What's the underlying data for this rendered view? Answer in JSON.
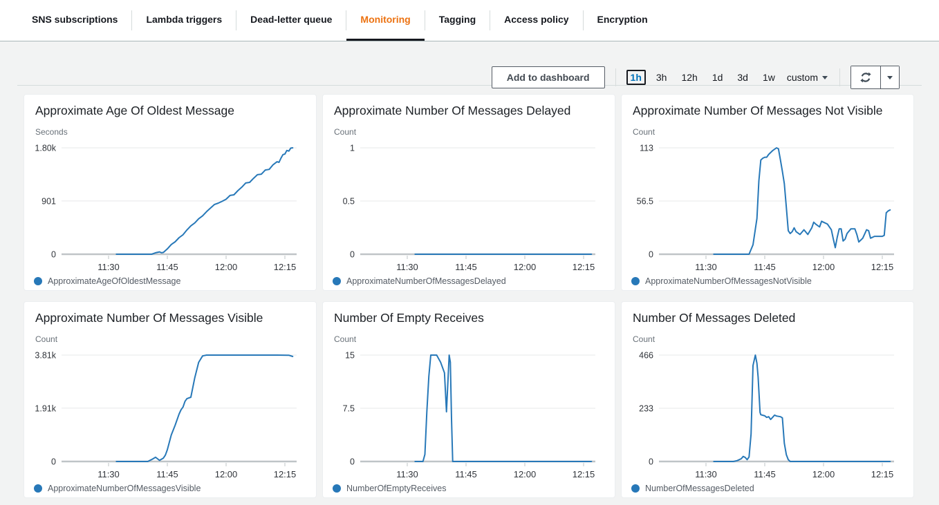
{
  "tab_bar": {
    "items": [
      {
        "label": "SNS subscriptions",
        "active": false
      },
      {
        "label": "Lambda triggers",
        "active": false
      },
      {
        "label": "Dead-letter queue",
        "active": false
      },
      {
        "label": "Monitoring",
        "active": true
      },
      {
        "label": "Tagging",
        "active": false
      },
      {
        "label": "Access policy",
        "active": false
      },
      {
        "label": "Encryption",
        "active": false
      }
    ]
  },
  "toolbar": {
    "add_to_dashboard_label": "Add to dashboard",
    "time_ranges": [
      {
        "label": "1h",
        "selected": true
      },
      {
        "label": "3h",
        "selected": false
      },
      {
        "label": "12h",
        "selected": false
      },
      {
        "label": "1d",
        "selected": false
      },
      {
        "label": "3d",
        "selected": false
      },
      {
        "label": "1w",
        "selected": false
      }
    ],
    "custom_label": "custom",
    "icons": {
      "refresh": "refresh-icon",
      "caret": "caret-down-icon"
    }
  },
  "colors": {
    "active_tab_orange": "#ec7211",
    "selected_range_blue": "#0073bb",
    "line_blue": "#2778b8",
    "gridline": "#e7e8ea",
    "axis_line": "#bfc4c7",
    "tick_text": "#30343a",
    "unit_text": "#687078",
    "legend_text": "#545b64",
    "page_background": "#f2f3f3",
    "card_background": "#ffffff"
  },
  "chart_data": [
    {
      "type": "line",
      "title": "Approximate Age Of Oldest Message",
      "ylabel": "Seconds",
      "ylim": [
        0,
        1800
      ],
      "x_domain_minutes": [
        0,
        60
      ],
      "grid": true,
      "legend_position": "bottom-left",
      "y_ticks": [
        {
          "value": 1800,
          "label": "1.80k"
        },
        {
          "value": 901,
          "label": "901"
        },
        {
          "value": 0,
          "label": "0"
        }
      ],
      "x_ticks": [
        {
          "minute": 12,
          "label": "11:30"
        },
        {
          "minute": 27,
          "label": "11:45"
        },
        {
          "minute": 42,
          "label": "12:00"
        },
        {
          "minute": 57,
          "label": "12:15"
        }
      ],
      "series": [
        {
          "name": "ApproximateAgeOfOldestMessage",
          "points": [
            [
              14,
              0
            ],
            [
              23,
              0
            ],
            [
              24,
              25
            ],
            [
              25,
              40
            ],
            [
              25.5,
              25
            ],
            [
              26,
              30
            ],
            [
              27,
              90
            ],
            [
              28,
              165
            ],
            [
              29,
              210
            ],
            [
              30,
              280
            ],
            [
              31,
              330
            ],
            [
              32,
              410
            ],
            [
              33,
              480
            ],
            [
              34,
              530
            ],
            [
              35,
              600
            ],
            [
              36,
              650
            ],
            [
              37,
              720
            ],
            [
              38,
              780
            ],
            [
              39,
              840
            ],
            [
              40,
              865
            ],
            [
              41,
              895
            ],
            [
              42,
              930
            ],
            [
              43,
              995
            ],
            [
              44,
              1005
            ],
            [
              45,
              1075
            ],
            [
              46,
              1135
            ],
            [
              47,
              1205
            ],
            [
              48,
              1215
            ],
            [
              49,
              1285
            ],
            [
              50,
              1345
            ],
            [
              51,
              1355
            ],
            [
              52,
              1425
            ],
            [
              53,
              1435
            ],
            [
              54,
              1515
            ],
            [
              55,
              1565
            ],
            [
              55.5,
              1555
            ],
            [
              56,
              1625
            ],
            [
              56.5,
              1685
            ],
            [
              57,
              1695
            ],
            [
              57.5,
              1755
            ],
            [
              58,
              1745
            ],
            [
              58.5,
              1795
            ],
            [
              59,
              1800
            ]
          ]
        }
      ]
    },
    {
      "type": "line",
      "title": "Approximate Number Of Messages Delayed",
      "ylabel": "Count",
      "ylim": [
        0,
        1
      ],
      "x_domain_minutes": [
        0,
        60
      ],
      "grid": true,
      "legend_position": "bottom-left",
      "y_ticks": [
        {
          "value": 1,
          "label": "1"
        },
        {
          "value": 0.5,
          "label": "0.5"
        },
        {
          "value": 0,
          "label": "0"
        }
      ],
      "x_ticks": [
        {
          "minute": 12,
          "label": "11:30"
        },
        {
          "minute": 27,
          "label": "11:45"
        },
        {
          "minute": 42,
          "label": "12:00"
        },
        {
          "minute": 57,
          "label": "12:15"
        }
      ],
      "series": [
        {
          "name": "ApproximateNumberOfMessagesDelayed",
          "points": [
            [
              14,
              0
            ],
            [
              59,
              0
            ]
          ]
        }
      ]
    },
    {
      "type": "line",
      "title": "Approximate Number Of Messages Not Visible",
      "ylabel": "Count",
      "ylim": [
        0,
        113
      ],
      "x_domain_minutes": [
        0,
        60
      ],
      "grid": true,
      "legend_position": "bottom-left",
      "y_ticks": [
        {
          "value": 113,
          "label": "113"
        },
        {
          "value": 56.5,
          "label": "56.5"
        },
        {
          "value": 0,
          "label": "0"
        }
      ],
      "x_ticks": [
        {
          "minute": 12,
          "label": "11:30"
        },
        {
          "minute": 27,
          "label": "11:45"
        },
        {
          "minute": 42,
          "label": "12:00"
        },
        {
          "minute": 57,
          "label": "12:15"
        }
      ],
      "series": [
        {
          "name": "ApproximateNumberOfMessagesNotVisible",
          "points": [
            [
              14,
              0
            ],
            [
              23,
              0
            ],
            [
              24,
              10
            ],
            [
              25,
              38
            ],
            [
              25.5,
              78
            ],
            [
              26,
              100
            ],
            [
              26.5,
              102
            ],
            [
              27,
              103
            ],
            [
              27.5,
              103
            ],
            [
              28,
              106
            ],
            [
              29,
              110
            ],
            [
              30,
              113
            ],
            [
              30.5,
              112
            ],
            [
              31,
              100
            ],
            [
              31.5,
              88
            ],
            [
              32,
              75
            ],
            [
              32.5,
              50
            ],
            [
              33,
              25
            ],
            [
              33.5,
              22
            ],
            [
              34,
              24
            ],
            [
              34.5,
              28
            ],
            [
              35,
              24
            ],
            [
              36,
              21
            ],
            [
              37,
              26
            ],
            [
              38,
              21
            ],
            [
              39,
              28
            ],
            [
              39.5,
              34
            ],
            [
              40,
              32
            ],
            [
              41,
              29
            ],
            [
              41.5,
              35
            ],
            [
              42,
              34
            ],
            [
              43,
              32
            ],
            [
              44,
              26
            ],
            [
              44.5,
              16
            ],
            [
              45,
              7
            ],
            [
              45.5,
              18
            ],
            [
              46,
              27
            ],
            [
              46.5,
              27
            ],
            [
              47,
              14
            ],
            [
              47.5,
              16
            ],
            [
              48,
              22
            ],
            [
              49,
              27
            ],
            [
              50,
              27
            ],
            [
              50.5,
              21
            ],
            [
              51,
              13
            ],
            [
              51.5,
              15
            ],
            [
              52,
              17
            ],
            [
              53,
              26
            ],
            [
              53.5,
              25
            ],
            [
              54,
              17
            ],
            [
              55,
              19
            ],
            [
              56,
              19
            ],
            [
              57,
              19
            ],
            [
              57.5,
              20
            ],
            [
              58,
              44
            ],
            [
              58.5,
              46
            ],
            [
              59,
              47
            ]
          ]
        }
      ]
    },
    {
      "type": "line",
      "title": "Approximate Number Of Messages Visible",
      "ylabel": "Count",
      "ylim": [
        0,
        3810
      ],
      "x_domain_minutes": [
        0,
        60
      ],
      "grid": true,
      "legend_position": "bottom-left",
      "y_ticks": [
        {
          "value": 3810,
          "label": "3.81k"
        },
        {
          "value": 1910,
          "label": "1.91k"
        },
        {
          "value": 0,
          "label": "0"
        }
      ],
      "x_ticks": [
        {
          "minute": 12,
          "label": "11:30"
        },
        {
          "minute": 27,
          "label": "11:45"
        },
        {
          "minute": 42,
          "label": "12:00"
        },
        {
          "minute": 57,
          "label": "12:15"
        }
      ],
      "series": [
        {
          "name": "ApproximateNumberOfMessagesVisible",
          "points": [
            [
              14,
              0
            ],
            [
              22,
              0
            ],
            [
              23,
              70
            ],
            [
              24,
              150
            ],
            [
              25,
              40
            ],
            [
              26,
              120
            ],
            [
              26.5,
              230
            ],
            [
              27,
              420
            ],
            [
              28,
              950
            ],
            [
              29,
              1300
            ],
            [
              30,
              1700
            ],
            [
              30.5,
              1850
            ],
            [
              31,
              1950
            ],
            [
              31.5,
              2150
            ],
            [
              32,
              2250
            ],
            [
              33,
              2300
            ],
            [
              34,
              3000
            ],
            [
              35,
              3550
            ],
            [
              36,
              3780
            ],
            [
              37,
              3810
            ],
            [
              40,
              3810
            ],
            [
              45,
              3810
            ],
            [
              50,
              3810
            ],
            [
              55,
              3810
            ],
            [
              58,
              3805
            ],
            [
              59,
              3760
            ]
          ]
        }
      ]
    },
    {
      "type": "line",
      "title": "Number Of Empty Receives",
      "ylabel": "Count",
      "ylim": [
        0,
        15
      ],
      "x_domain_minutes": [
        0,
        60
      ],
      "grid": true,
      "legend_position": "bottom-left",
      "y_ticks": [
        {
          "value": 15,
          "label": "15"
        },
        {
          "value": 7.5,
          "label": "7.5"
        },
        {
          "value": 0,
          "label": "0"
        }
      ],
      "x_ticks": [
        {
          "minute": 12,
          "label": "11:30"
        },
        {
          "minute": 27,
          "label": "11:45"
        },
        {
          "minute": 42,
          "label": "12:00"
        },
        {
          "minute": 57,
          "label": "12:15"
        }
      ],
      "series": [
        {
          "name": "NumberOfEmptyReceives",
          "points": [
            [
              14,
              0
            ],
            [
              16,
              0
            ],
            [
              16.5,
              1
            ],
            [
              17,
              7
            ],
            [
              17.5,
              12
            ],
            [
              18,
              15
            ],
            [
              19.5,
              15
            ],
            [
              20.5,
              14
            ],
            [
              21.5,
              12.5
            ],
            [
              22,
              7
            ],
            [
              22.7,
              15
            ],
            [
              23,
              14
            ],
            [
              23.3,
              6
            ],
            [
              23.6,
              0
            ],
            [
              30,
              0
            ],
            [
              40,
              0
            ],
            [
              50,
              0
            ],
            [
              59,
              0
            ]
          ]
        }
      ]
    },
    {
      "type": "line",
      "title": "Number Of Messages Deleted",
      "ylabel": "Count",
      "ylim": [
        0,
        466
      ],
      "x_domain_minutes": [
        0,
        60
      ],
      "grid": true,
      "legend_position": "bottom-left",
      "y_ticks": [
        {
          "value": 466,
          "label": "466"
        },
        {
          "value": 233,
          "label": "233"
        },
        {
          "value": 0,
          "label": "0"
        }
      ],
      "x_ticks": [
        {
          "minute": 12,
          "label": "11:30"
        },
        {
          "minute": 27,
          "label": "11:45"
        },
        {
          "minute": 42,
          "label": "12:00"
        },
        {
          "minute": 57,
          "label": "12:15"
        }
      ],
      "series": [
        {
          "name": "NumberOfMessagesDeleted",
          "points": [
            [
              14,
              0
            ],
            [
              19,
              0
            ],
            [
              20,
              4
            ],
            [
              21,
              12
            ],
            [
              21.5,
              22
            ],
            [
              22,
              18
            ],
            [
              22.5,
              8
            ],
            [
              23,
              20
            ],
            [
              23.5,
              120
            ],
            [
              24,
              420
            ],
            [
              24.6,
              466
            ],
            [
              25,
              430
            ],
            [
              25.3,
              370
            ],
            [
              25.8,
              215
            ],
            [
              26,
              205
            ],
            [
              27,
              200
            ],
            [
              27.5,
              193
            ],
            [
              28,
              196
            ],
            [
              28.5,
              184
            ],
            [
              29,
              193
            ],
            [
              29.5,
              203
            ],
            [
              30,
              199
            ],
            [
              31,
              196
            ],
            [
              31.5,
              191
            ],
            [
              32,
              80
            ],
            [
              32.5,
              30
            ],
            [
              33,
              8
            ],
            [
              33.5,
              0
            ],
            [
              40,
              0
            ],
            [
              50,
              0
            ],
            [
              59,
              0
            ]
          ]
        }
      ]
    }
  ]
}
